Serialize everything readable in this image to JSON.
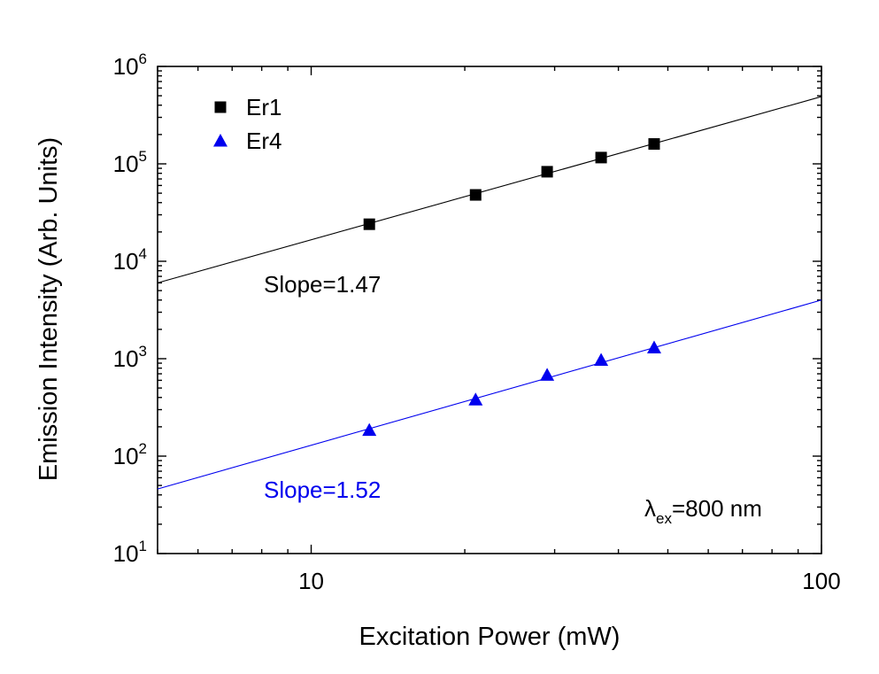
{
  "chart_data": {
    "type": "scatter",
    "title": "",
    "xlabel": "Excitation Power (mW)",
    "ylabel": "Emission Intensity (Arb. Units)",
    "xscale": "log",
    "yscale": "log",
    "xlim": [
      5,
      100
    ],
    "ylim": [
      10,
      1000000
    ],
    "x_major_ticks": [
      10,
      100
    ],
    "x_tick_labels": [
      "10",
      "100"
    ],
    "y_major_ticks": [
      10,
      100,
      1000,
      10000,
      100000,
      1000000
    ],
    "y_tick_labels": [
      {
        "base": "10",
        "exp": "1"
      },
      {
        "base": "10",
        "exp": "2"
      },
      {
        "base": "10",
        "exp": "3"
      },
      {
        "base": "10",
        "exp": "4"
      },
      {
        "base": "10",
        "exp": "5"
      },
      {
        "base": "10",
        "exp": "6"
      }
    ],
    "grid": false,
    "legend_position": "top-left",
    "series": [
      {
        "name": "Er1",
        "marker": "square",
        "color": "#000000",
        "x": [
          13,
          21,
          29,
          37,
          47
        ],
        "y": [
          24000,
          48000,
          83000,
          116000,
          160000
        ],
        "fit_line": {
          "x": [
            5,
            100
          ],
          "y": [
            6000,
            490000
          ],
          "slope_label": "Slope=1.47"
        }
      },
      {
        "name": "Er4",
        "marker": "triangle",
        "color": "#0000ee",
        "x": [
          13,
          21,
          29,
          37,
          47
        ],
        "y": [
          185,
          380,
          680,
          970,
          1300
        ],
        "fit_line": {
          "x": [
            5,
            100
          ],
          "y": [
            46,
            4000
          ],
          "slope_label": "Slope=1.52"
        }
      }
    ],
    "annotation": {
      "lambda": "λ",
      "sub": "ex",
      "text": "=800 nm"
    }
  }
}
